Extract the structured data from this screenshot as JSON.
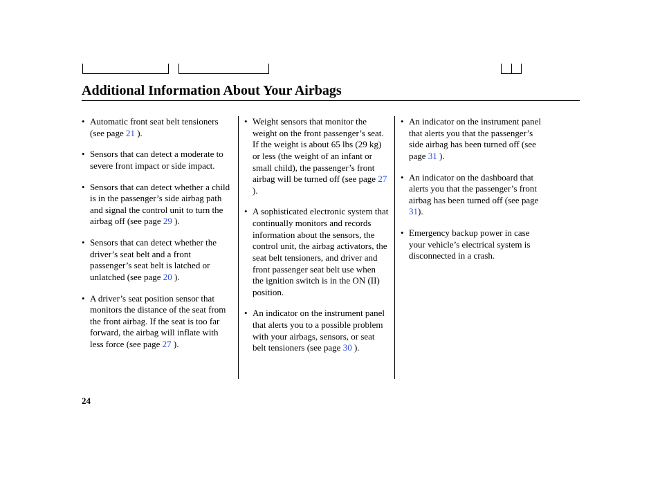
{
  "title": "Additional Information About Your Airbags",
  "page_number": "24",
  "colors": {
    "link": "#2a4bd7",
    "text": "#000000",
    "bg": "#ffffff"
  },
  "font": {
    "body_pt": 13,
    "title_pt": 20,
    "family": "Times New Roman"
  },
  "columns": [
    {
      "items": [
        {
          "pre": "Automatic front seat belt tensioners (see page ",
          "ref": "21",
          "post": " )."
        },
        {
          "pre": "Sensors that can detect a moderate to severe front impact or side impact.",
          "ref": "",
          "post": ""
        },
        {
          "pre": "Sensors that can detect whether a child is in the passenger’s side airbag path and signal the control unit to turn the airbag off (see page ",
          "ref": "29",
          "post": " )."
        },
        {
          "pre": "Sensors that can detect whether the driver’s seat belt and a front passenger’s seat belt is latched or unlatched (see page ",
          "ref": "20",
          "post": " )."
        },
        {
          "pre": "A driver’s seat position sensor that monitors the distance of the seat from the front airbag. If the seat is too far forward, the airbag will inflate with less force (see page ",
          "ref": "27",
          "post": " )."
        }
      ]
    },
    {
      "items": [
        {
          "pre": "Weight sensors that monitor the weight on the front passenger’s seat. If the weight is about 65 lbs (29 kg) or less (the weight of an infant or small child), the passenger’s front airbag will be turned off (see page ",
          "ref": "27",
          "post": " )."
        },
        {
          "pre": "A sophisticated electronic system that continually monitors and records information about the sensors, the control unit, the airbag activators, the seat belt tensioners, and driver and front passenger seat belt use when the ignition switch is in the ON (II) position.",
          "ref": "",
          "post": ""
        },
        {
          "pre": "An indicator on the instrument panel that alerts you to a possible problem with your airbags, sensors, or seat belt tensioners (see page ",
          "ref": "30",
          "post": " )."
        }
      ]
    },
    {
      "items": [
        {
          "pre": "An indicator on the instrument panel that alerts you that the passenger’s side airbag has been turned off (see page ",
          "ref": "31",
          "post": " )."
        },
        {
          "pre": "An indicator on the dashboard that alerts you that the passenger’s front airbag has been turned off (see page ",
          "ref": "31",
          "post": ")."
        },
        {
          "pre": "Emergency backup power in case your vehicle’s electrical system is disconnected in a crash.",
          "ref": "",
          "post": ""
        }
      ]
    }
  ]
}
